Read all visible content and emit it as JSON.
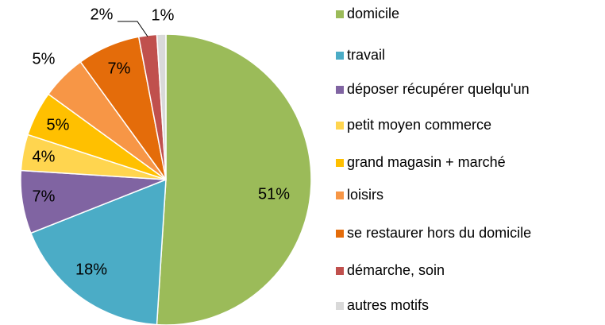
{
  "chart_data": {
    "type": "pie",
    "categories": [
      "domicile",
      "travail",
      "déposer récupérer quelqu'un",
      "petit moyen commerce",
      "grand magasin + marché",
      "loisirs",
      "se restaurer hors du domicile",
      "démarche, soin",
      "autres motifs"
    ],
    "values": [
      51,
      18,
      7,
      4,
      5,
      5,
      7,
      2,
      1
    ],
    "value_labels": [
      "51%",
      "18%",
      "7%",
      "4%",
      "5%",
      "5%",
      "7%",
      "2%",
      "1%"
    ],
    "colors": [
      "#9bbb59",
      "#4bacc6",
      "#8064a2",
      "#ffd54f",
      "#ffc000",
      "#f79646",
      "#e46c0a",
      "#c0504d",
      "#d9d9d9"
    ],
    "legend": "right"
  }
}
